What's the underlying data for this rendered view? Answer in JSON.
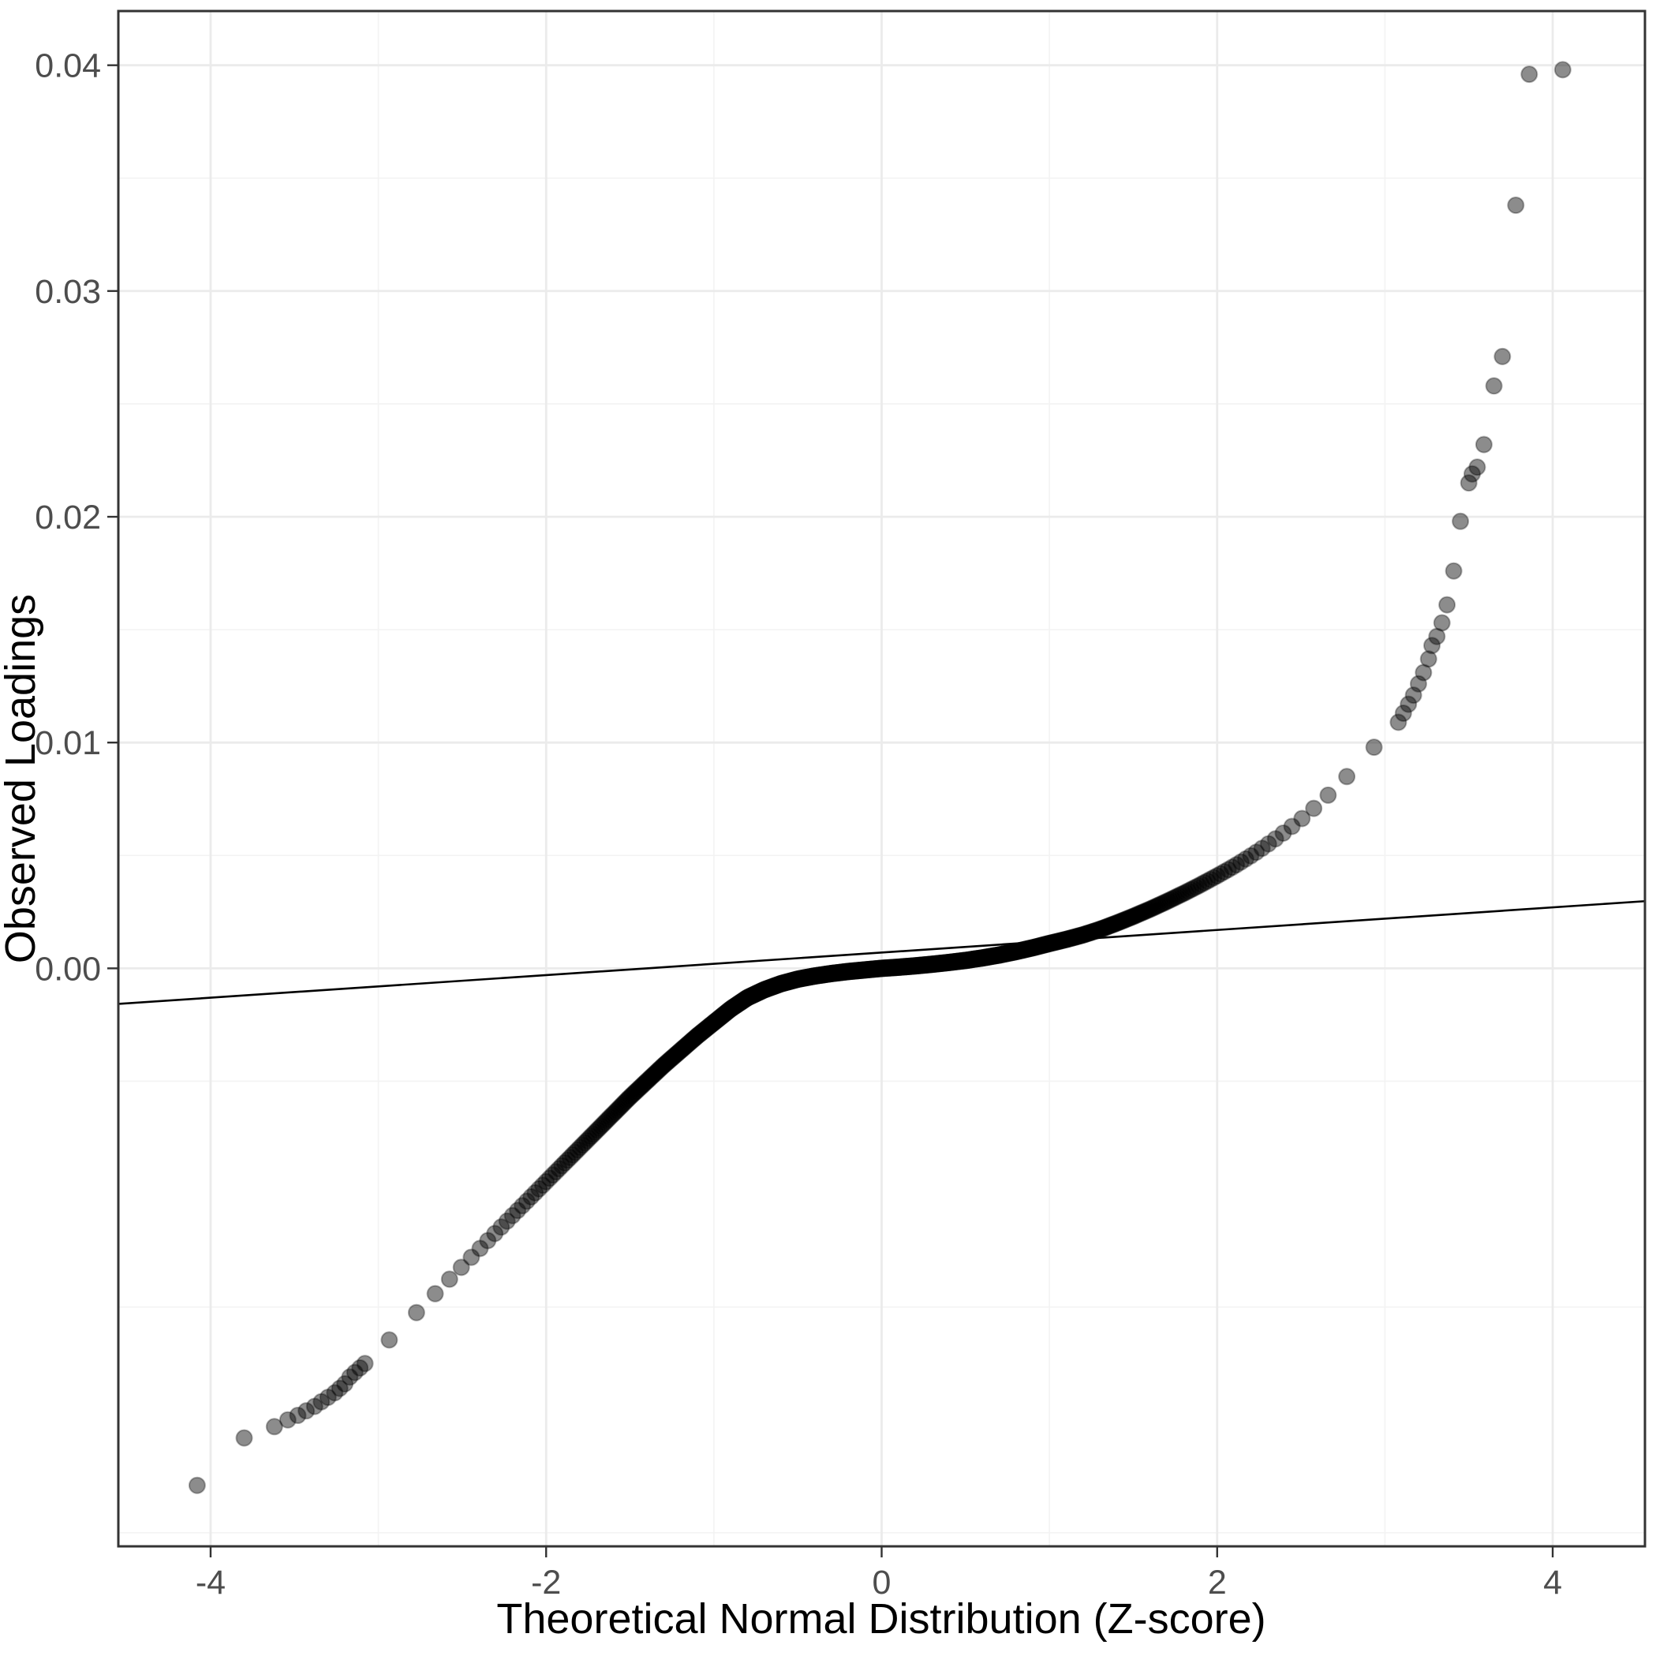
{
  "chart_data": {
    "type": "scatter",
    "variant": "qq-plot",
    "title": "",
    "xlabel": "Theoretical Normal Distribution (Z-score)",
    "ylabel": "Observed Loadings",
    "xlim": [
      -4.55,
      4.55
    ],
    "ylim": [
      -0.0256,
      0.0424
    ],
    "x_ticks": [
      -4,
      -2,
      0,
      2,
      4
    ],
    "x_tick_labels": [
      "-4",
      "-2",
      "0",
      "2",
      "4"
    ],
    "x_minor_ticks": [
      -3,
      -1,
      1,
      3
    ],
    "y_ticks": [
      0.0,
      0.01,
      0.02,
      0.03,
      0.04
    ],
    "y_tick_labels": [
      "0.00",
      "0.01",
      "0.02",
      "0.03",
      "0.04"
    ],
    "y_minor_ticks": [
      -0.025,
      -0.015,
      -0.005,
      0.005,
      0.015,
      0.025,
      0.035
    ],
    "grid": true,
    "legend": false,
    "n_points": 900,
    "quantile_curve_anchors": [
      [
        -3.05,
        -0.0173
      ],
      [
        -2.9,
        -0.0162
      ],
      [
        -2.7,
        -0.0147
      ],
      [
        -2.5,
        -0.0132
      ],
      [
        -2.3,
        -0.0117
      ],
      [
        -2.1,
        -0.0102
      ],
      [
        -1.9,
        -0.0087
      ],
      [
        -1.7,
        -0.0072
      ],
      [
        -1.5,
        -0.0057
      ],
      [
        -1.3,
        -0.0043
      ],
      [
        -1.1,
        -0.003
      ],
      [
        -0.9,
        -0.0018
      ],
      [
        -0.8,
        -0.0013
      ],
      [
        -0.7,
        -0.00095
      ],
      [
        -0.6,
        -0.00068
      ],
      [
        -0.5,
        -0.00048
      ],
      [
        -0.4,
        -0.00034
      ],
      [
        -0.3,
        -0.00023
      ],
      [
        -0.2,
        -0.00014
      ],
      [
        -0.1,
        -7e-05
      ],
      [
        0.0,
        0.0
      ],
      [
        0.1,
        5e-05
      ],
      [
        0.2,
        0.00011
      ],
      [
        0.3,
        0.00018
      ],
      [
        0.4,
        0.00026
      ],
      [
        0.5,
        0.00035
      ],
      [
        0.6,
        0.00046
      ],
      [
        0.7,
        0.00059
      ],
      [
        0.8,
        0.00074
      ],
      [
        0.9,
        0.00091
      ],
      [
        1.0,
        0.0011
      ],
      [
        1.1,
        0.00128
      ],
      [
        1.2,
        0.00148
      ],
      [
        1.3,
        0.00172
      ],
      [
        1.4,
        0.002
      ],
      [
        1.5,
        0.0023
      ],
      [
        1.6,
        0.00262
      ],
      [
        1.7,
        0.00296
      ],
      [
        1.8,
        0.00332
      ],
      [
        1.9,
        0.0037
      ],
      [
        2.0,
        0.0041
      ],
      [
        2.1,
        0.00452
      ],
      [
        2.2,
        0.00498
      ],
      [
        2.3,
        0.00548
      ],
      [
        2.4,
        0.00602
      ],
      [
        2.5,
        0.0066
      ],
      [
        2.6,
        0.00724
      ],
      [
        2.7,
        0.00794
      ],
      [
        2.8,
        0.0087
      ],
      [
        2.9,
        0.00952
      ],
      [
        3.0,
        0.0103
      ],
      [
        3.05,
        0.0106
      ]
    ],
    "lower_tail_points": [
      [
        -4.08,
        -0.0229
      ],
      [
        -3.8,
        -0.0208
      ],
      [
        -3.62,
        -0.0203
      ],
      [
        -3.54,
        -0.02
      ],
      [
        -3.48,
        -0.0198
      ],
      [
        -3.43,
        -0.0196
      ],
      [
        -3.38,
        -0.0194
      ],
      [
        -3.34,
        -0.0192
      ],
      [
        -3.3,
        -0.019
      ],
      [
        -3.26,
        -0.0188
      ],
      [
        -3.23,
        -0.0186
      ],
      [
        -3.2,
        -0.0184
      ],
      [
        -3.17,
        -0.0181
      ],
      [
        -3.14,
        -0.0179
      ],
      [
        -3.11,
        -0.0177
      ],
      [
        -3.08,
        -0.0175
      ]
    ],
    "upper_tail_points": [
      [
        3.08,
        0.0109
      ],
      [
        3.11,
        0.0113
      ],
      [
        3.14,
        0.0117
      ],
      [
        3.17,
        0.0121
      ],
      [
        3.2,
        0.0126
      ],
      [
        3.23,
        0.0131
      ],
      [
        3.26,
        0.0137
      ],
      [
        3.28,
        0.0143
      ],
      [
        3.31,
        0.0147
      ],
      [
        3.34,
        0.0153
      ],
      [
        3.37,
        0.0161
      ],
      [
        3.41,
        0.0176
      ],
      [
        3.45,
        0.0198
      ],
      [
        3.5,
        0.0215
      ],
      [
        3.52,
        0.0219
      ],
      [
        3.55,
        0.0222
      ],
      [
        3.59,
        0.0232
      ],
      [
        3.65,
        0.0258
      ],
      [
        3.7,
        0.0271
      ],
      [
        3.78,
        0.0338
      ],
      [
        3.86,
        0.0396
      ],
      [
        4.06,
        0.0398
      ]
    ],
    "reference_line": {
      "intercept": 0.0007,
      "slope": 0.0005,
      "color": "#000000"
    }
  },
  "style": {
    "panel_background": "#FFFFFF",
    "outer_background": "#FFFFFF",
    "grid_major_color": "#EBEBEB",
    "grid_minor_color": "#F3F3F3",
    "panel_border_color": "#333333",
    "axis_tick_color": "#333333",
    "tick_label_color": "#4D4D4D",
    "axis_title_color": "#000000",
    "point_color": "#000000",
    "point_opacity": 0.45
  }
}
